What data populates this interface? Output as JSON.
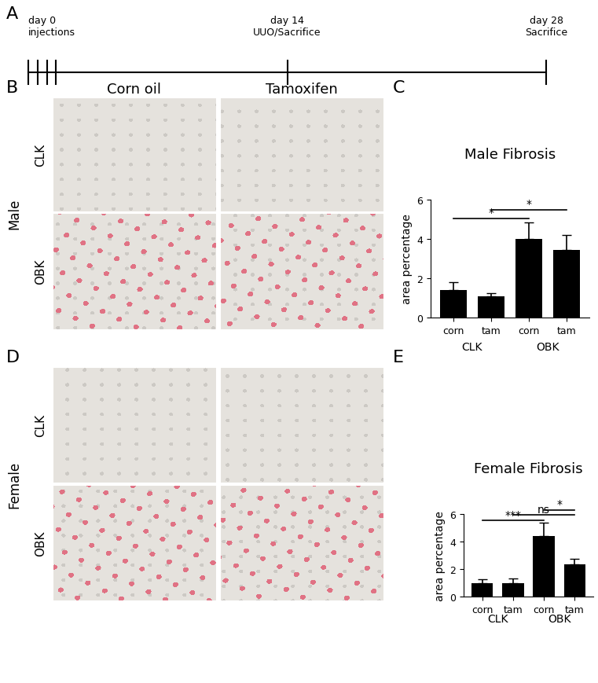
{
  "panel_labels": [
    "A",
    "B",
    "C",
    "D",
    "E"
  ],
  "timeline": {
    "xlim": [
      0,
      28
    ],
    "events": [
      {
        "day": 0,
        "label": [
          "day 0",
          "injections"
        ]
      },
      {
        "day": 14,
        "label": [
          "day 14",
          "UUO/Sacrifice"
        ]
      },
      {
        "day": 28,
        "label": [
          "day 28",
          "Sacrifice"
        ]
      }
    ]
  },
  "micrographs": {
    "columns": [
      "Corn oil",
      "Tamoxifen"
    ],
    "rows": [
      "CLK",
      "OBK"
    ],
    "groups": [
      "Male",
      "Female"
    ]
  },
  "chart_data": [
    {
      "type": "bar",
      "title": "Male Fibrosis",
      "y_label": "area percentage",
      "categories": [
        "corn",
        "tam",
        "corn",
        "tam"
      ],
      "groups": [
        {
          "label": "CLK",
          "members": [
            0,
            1
          ]
        },
        {
          "label": "OBK",
          "members": [
            2,
            3
          ]
        }
      ],
      "values": [
        1.4,
        1.1,
        4.0,
        3.45
      ],
      "errors": [
        0.4,
        0.15,
        0.85,
        0.75
      ],
      "color": "#000000",
      "ylim": [
        0,
        6
      ],
      "yticks": [
        0,
        2,
        4,
        6
      ],
      "comparisons": [
        {
          "between": [
            0,
            2
          ],
          "label": "*"
        },
        {
          "between": [
            1,
            3
          ],
          "label": "*"
        }
      ]
    },
    {
      "type": "bar",
      "title": "Female Fibrosis",
      "y_label": "area percentage",
      "categories": [
        "corn",
        "tam",
        "corn",
        "tam"
      ],
      "groups": [
        {
          "label": "CLK",
          "members": [
            0,
            1
          ]
        },
        {
          "label": "OBK",
          "members": [
            2,
            3
          ]
        }
      ],
      "values": [
        1.0,
        1.0,
        4.4,
        2.35
      ],
      "errors": [
        0.25,
        0.3,
        0.95,
        0.4
      ],
      "color": "#000000",
      "ylim": [
        0,
        6
      ],
      "yticks": [
        0,
        2,
        4,
        6
      ],
      "comparisons": [
        {
          "between": [
            0,
            2
          ],
          "label": "***"
        },
        {
          "between": [
            1,
            3
          ],
          "label": "ns"
        },
        {
          "between": [
            2,
            3
          ],
          "label": "*"
        }
      ]
    }
  ]
}
